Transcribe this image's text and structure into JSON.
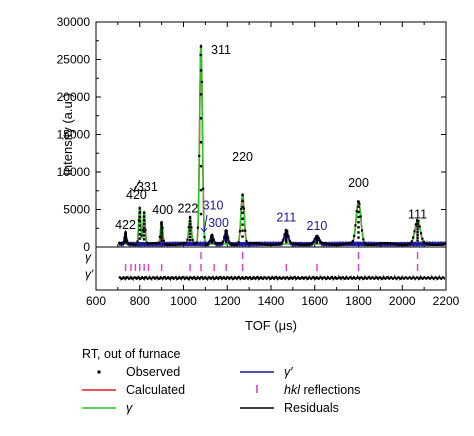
{
  "chart_data": {
    "type": "line",
    "xlabel": "TOF (μs)",
    "ylabel": "Intensity (a.u.)",
    "xlim": [
      600,
      2200
    ],
    "ylim": [
      0,
      30000
    ],
    "x_ticks": [
      600,
      700,
      800,
      900,
      1000,
      1100,
      1200,
      1300,
      1400,
      1500,
      1600,
      1700,
      1800,
      1900,
      2000,
      2100,
      2200
    ],
    "x_tick_labels": [
      "600",
      "800",
      "1000",
      "1200",
      "1400",
      "1600",
      "1800",
      "2000",
      "2200"
    ],
    "y_ticks": [
      0,
      5000,
      10000,
      15000,
      20000,
      25000,
      30000
    ],
    "y_tick_labels": [
      "0",
      "5000",
      "10000",
      "15000",
      "20000",
      "25000",
      "30000"
    ],
    "colors": {
      "observed": "#000000",
      "calculated": "#e02020",
      "gamma": "#22cc22",
      "gamma_prime": "#1a1aa0",
      "hkl": "#e23cc8",
      "residuals": "#000000",
      "peak_label_black": "#000000",
      "peak_label_blue": "#1a1aa0"
    },
    "background": 400,
    "peaks": [
      {
        "x": 735,
        "height": 1500,
        "phase": "gamma_prime"
      },
      {
        "x": 800,
        "height": 4800,
        "phase": "gamma"
      },
      {
        "x": 820,
        "height": 4200,
        "phase": "gamma"
      },
      {
        "x": 900,
        "height": 2900,
        "phase": "gamma"
      },
      {
        "x": 1030,
        "height": 3500,
        "phase": "gamma"
      },
      {
        "x": 1080,
        "height": 26600,
        "phase": "gamma"
      },
      {
        "x": 1130,
        "height": 1200,
        "phase": "gamma_prime"
      },
      {
        "x": 1195,
        "height": 1800,
        "phase": "gamma_prime"
      },
      {
        "x": 1270,
        "height": 6600,
        "phase": "gamma"
      },
      {
        "x": 1470,
        "height": 1800,
        "phase": "gamma_prime"
      },
      {
        "x": 1610,
        "height": 1000,
        "phase": "gamma_prime"
      },
      {
        "x": 1800,
        "height": 5700,
        "phase": "gamma"
      },
      {
        "x": 2070,
        "height": 3100,
        "phase": "gamma"
      }
    ],
    "peak_labels": [
      {
        "text": "311",
        "x": 1080,
        "y": 26800,
        "color": "black"
      },
      {
        "text": "331",
        "x": 835,
        "y": 7500,
        "color": "black"
      },
      {
        "text": "420",
        "x": 785,
        "y": 6400,
        "color": "black"
      },
      {
        "text": "400",
        "x": 905,
        "y": 4400,
        "color": "black"
      },
      {
        "text": "422",
        "x": 735,
        "y": 2400,
        "color": "black"
      },
      {
        "text": "222",
        "x": 1020,
        "y": 4600,
        "color": "black"
      },
      {
        "text": "310",
        "x": 1135,
        "y": 5000,
        "color": "blue"
      },
      {
        "text": "300",
        "x": 1160,
        "y": 2700,
        "color": "blue"
      },
      {
        "text": "220",
        "x": 1270,
        "y": 11500,
        "color": "black"
      },
      {
        "text": "211",
        "x": 1470,
        "y": 3400,
        "color": "blue"
      },
      {
        "text": "210",
        "x": 1610,
        "y": 2300,
        "color": "blue"
      },
      {
        "text": "200",
        "x": 1800,
        "y": 8000,
        "color": "black"
      },
      {
        "text": "111",
        "x": 2070,
        "y": 3800,
        "color": "black"
      }
    ],
    "hkl_gamma": [
      1080,
      1270,
      1800,
      2070
    ],
    "hkl_gamma_prime": [
      735,
      760,
      780,
      800,
      820,
      840,
      900,
      1030,
      1080,
      1140,
      1195,
      1270,
      1470,
      1610,
      1800,
      2070
    ],
    "hkl_row_labels": [
      "γ",
      "γ′"
    ],
    "legend": {
      "title": "RT, out of furnace",
      "items": [
        {
          "key": "observed",
          "label": "Observed"
        },
        {
          "key": "calculated",
          "label": "Calculated"
        },
        {
          "key": "gamma",
          "label": "γ"
        },
        {
          "key": "gamma_prime",
          "label": "γ′"
        },
        {
          "key": "hkl",
          "label_italic": "hkl",
          "label": " reflections"
        },
        {
          "key": "residuals",
          "label": "Residuals"
        }
      ]
    }
  }
}
